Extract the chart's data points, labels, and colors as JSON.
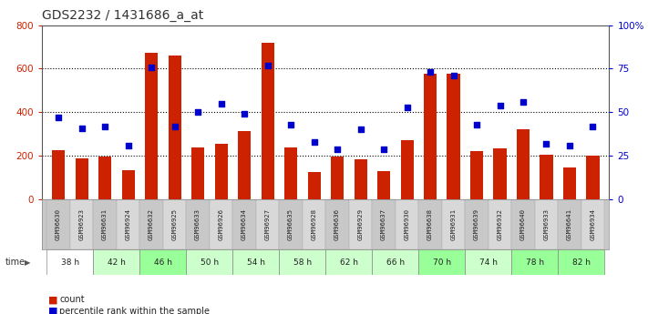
{
  "title": "GDS2232 / 1431686_a_at",
  "samples": [
    "GSM96630",
    "GSM96923",
    "GSM96631",
    "GSM96924",
    "GSM96632",
    "GSM96925",
    "GSM96633",
    "GSM96926",
    "GSM96634",
    "GSM96927",
    "GSM96635",
    "GSM96928",
    "GSM96636",
    "GSM96929",
    "GSM96637",
    "GSM96930",
    "GSM96638",
    "GSM96931",
    "GSM96639",
    "GSM96932",
    "GSM96640",
    "GSM96933",
    "GSM96641",
    "GSM96934"
  ],
  "counts": [
    225,
    190,
    195,
    135,
    675,
    660,
    240,
    255,
    315,
    720,
    240,
    125,
    195,
    185,
    130,
    270,
    575,
    575,
    220,
    235,
    320,
    205,
    145,
    200
  ],
  "percentile": [
    47,
    41,
    42,
    31,
    76,
    42,
    50,
    55,
    49,
    77,
    43,
    33,
    29,
    40,
    29,
    53,
    73,
    71,
    43,
    54,
    56,
    32,
    31,
    42
  ],
  "time_groups": [
    {
      "label": "38 h",
      "indices": [
        0,
        1
      ],
      "color": "#ffffff"
    },
    {
      "label": "42 h",
      "indices": [
        2,
        3
      ],
      "color": "#ccffcc"
    },
    {
      "label": "46 h",
      "indices": [
        4,
        5
      ],
      "color": "#99ff99"
    },
    {
      "label": "50 h",
      "indices": [
        6,
        7
      ],
      "color": "#ccffcc"
    },
    {
      "label": "54 h",
      "indices": [
        8,
        9
      ],
      "color": "#ccffcc"
    },
    {
      "label": "58 h",
      "indices": [
        10,
        11
      ],
      "color": "#ccffcc"
    },
    {
      "label": "62 h",
      "indices": [
        12,
        13
      ],
      "color": "#ccffcc"
    },
    {
      "label": "66 h",
      "indices": [
        14,
        15
      ],
      "color": "#ccffcc"
    },
    {
      "label": "70 h",
      "indices": [
        16,
        17
      ],
      "color": "#99ff99"
    },
    {
      "label": "74 h",
      "indices": [
        18,
        19
      ],
      "color": "#ccffcc"
    },
    {
      "label": "78 h",
      "indices": [
        20,
        21
      ],
      "color": "#99ff99"
    },
    {
      "label": "82 h",
      "indices": [
        22,
        23
      ],
      "color": "#99ff99"
    }
  ],
  "bar_color": "#cc2200",
  "dot_color": "#0000cc",
  "left_ylim": [
    0,
    800
  ],
  "right_ylim": [
    0,
    100
  ],
  "left_yticks": [
    0,
    200,
    400,
    600,
    800
  ],
  "right_yticks": [
    0,
    25,
    50,
    75,
    100
  ],
  "right_yticklabels": [
    "0",
    "25",
    "50",
    "75",
    "100%"
  ],
  "left_ylabel_color": "#cc2200",
  "right_ylabel_color": "#0000cc",
  "bg_color": "#ffffff",
  "plot_bg_color": "#ffffff",
  "grid_color": "#000000",
  "legend_count_label": "count",
  "legend_pct_label": "percentile rank within the sample",
  "title_fontsize": 10,
  "bar_width": 0.55,
  "sample_bg_even": "#c8c8c8",
  "sample_bg_odd": "#d8d8d8"
}
